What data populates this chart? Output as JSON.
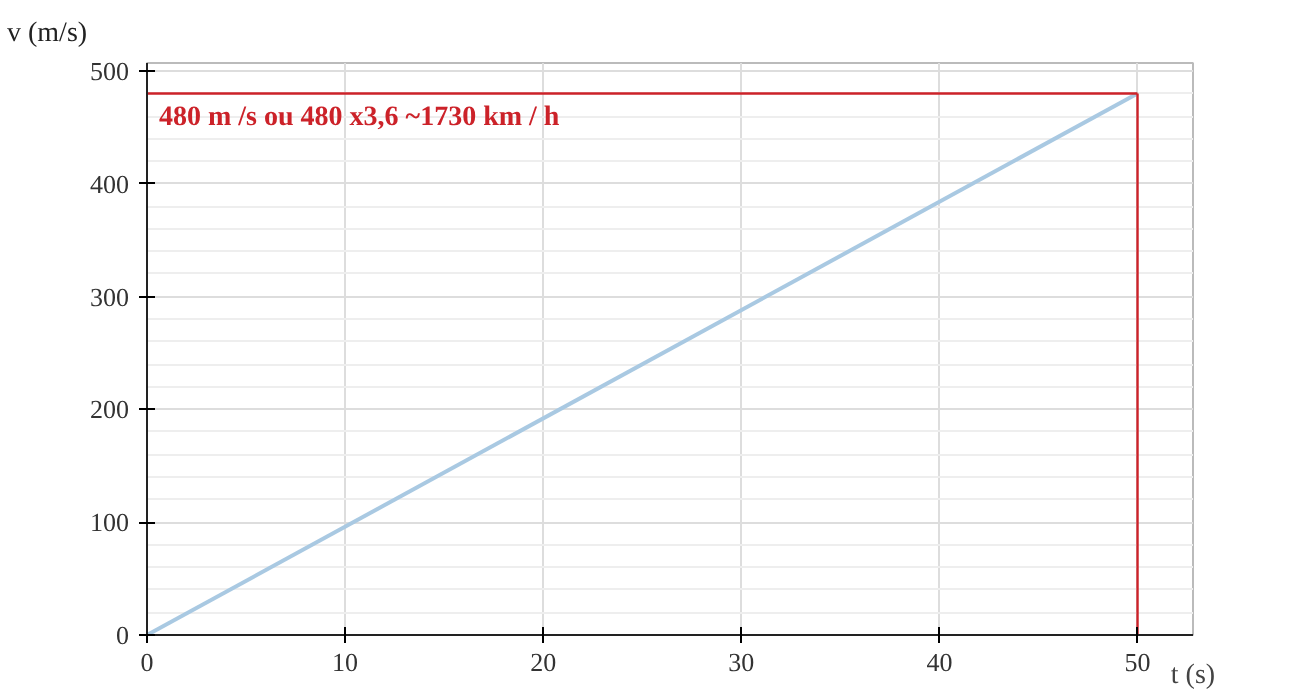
{
  "chart_data": {
    "type": "line",
    "xlabel": "t (s)",
    "ylabel": "v (m/s)",
    "x": [
      0,
      50
    ],
    "series": [
      {
        "color": "#a9c9e2",
        "values": [
          0,
          480
        ]
      }
    ],
    "xlim": [
      0,
      52.8
    ],
    "ylim": [
      0,
      507
    ],
    "xticks": [
      0,
      10,
      20,
      30,
      40,
      50
    ],
    "yticks": [
      0,
      100,
      200,
      300,
      400,
      500
    ],
    "grid": true,
    "marker": "none",
    "line_style": "solid",
    "ref_lines": [
      {
        "axis": "y",
        "value": 480,
        "label": "480 m /s ou 480 x3,6 ~1730 km / h",
        "color": "#cc2229"
      },
      {
        "axis": "x",
        "value": 50,
        "color": "#cc2229"
      }
    ]
  }
}
